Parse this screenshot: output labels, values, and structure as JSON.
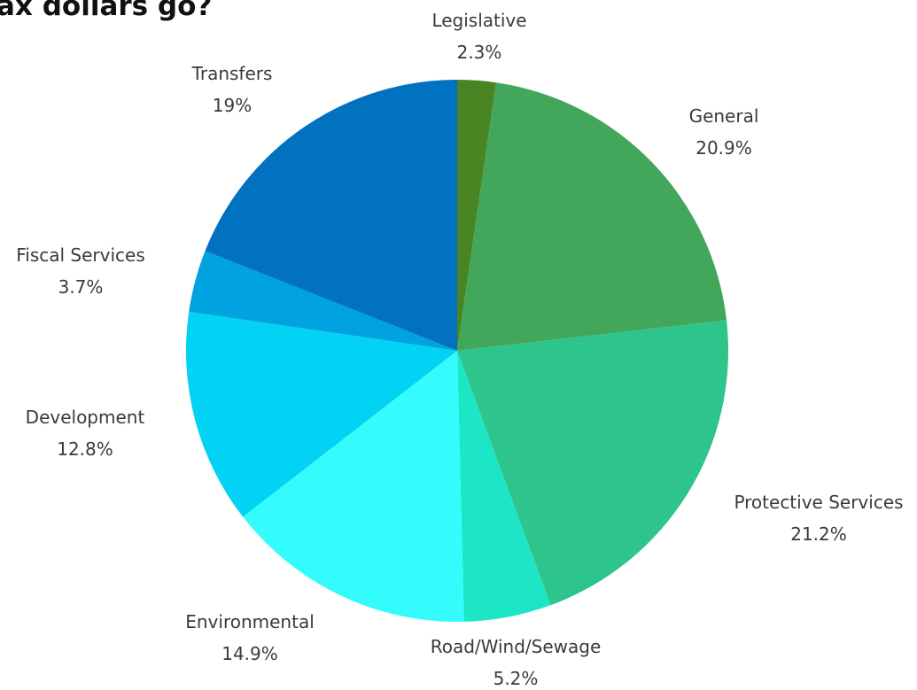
{
  "chart_data": {
    "type": "pie",
    "title": "ax dollars go?",
    "slices": [
      {
        "name": "Legislative",
        "value": 2.3,
        "label": "2.3%",
        "color": "#4a8524"
      },
      {
        "name": "General",
        "value": 20.9,
        "label": "20.9%",
        "color": "#42a75b"
      },
      {
        "name": "Protective Services",
        "value": 21.2,
        "label": "21.2%",
        "color": "#2dc58b"
      },
      {
        "name": "Road/Wind/Sewage",
        "value": 5.2,
        "label": "5.2%",
        "color": "#1de6c7"
      },
      {
        "name": "Environmental",
        "value": 14.9,
        "label": "14.9%",
        "color": "#34fcfc"
      },
      {
        "name": "Development",
        "value": 12.8,
        "label": "12.8%",
        "color": "#02d2f3"
      },
      {
        "name": "Fiscal Services",
        "value": 3.7,
        "label": "3.7%",
        "color": "#00a2e0"
      },
      {
        "name": "Transfers",
        "value": 19,
        "label": "19%",
        "color": "#0072c0"
      }
    ],
    "start_angle": "12 o'clock",
    "direction": "clockwise",
    "legend": "none"
  }
}
